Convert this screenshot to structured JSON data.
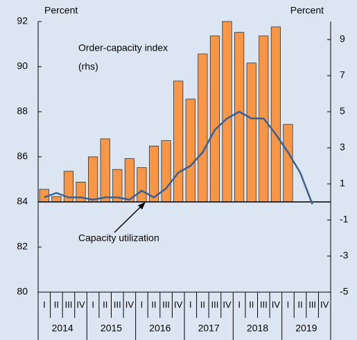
{
  "chart_data": {
    "type": "bar_line",
    "ylabel": "Percent",
    "y2label": "Percent",
    "categories": [
      "I",
      "II",
      "III",
      "IV",
      "I",
      "II",
      "III",
      "IV",
      "I",
      "II",
      "III",
      "IV",
      "I",
      "II",
      "III",
      "IV",
      "I",
      "II",
      "III",
      "IV",
      "I",
      "II",
      "III",
      "IV"
    ],
    "category_groups": [
      "2014",
      "2015",
      "2016",
      "2017",
      "2018",
      "2019"
    ],
    "series": [
      {
        "type": "bar",
        "axis": "y2",
        "color": "#f79646",
        "values": [
          0.7,
          0.3,
          1.7,
          1.1,
          2.5,
          3.5,
          1.8,
          2.4,
          1.9,
          3.1,
          3.4,
          6.7,
          5.7,
          8.2,
          9.2,
          10.0,
          9.4,
          7.7,
          9.2,
          9.7,
          4.3,
          null,
          null,
          null
        ]
      },
      {
        "type": "line",
        "axis": "y",
        "color": "#3a5f95",
        "values": [
          84.2,
          84.4,
          84.2,
          84.2,
          84.1,
          84.2,
          84.2,
          84.1,
          84.5,
          84.2,
          84.6,
          85.3,
          85.6,
          86.2,
          87.2,
          87.7,
          88.0,
          87.7,
          87.7,
          87.0,
          86.2,
          85.3,
          83.9,
          null
        ]
      }
    ],
    "annotations": [
      "Order-capacity index",
      "(rhs)",
      "Capacity utilization"
    ],
    "ylim": [
      80,
      92
    ],
    "yticks": [
      80,
      82,
      84,
      86,
      88,
      90,
      92
    ],
    "y2lim": [
      -5,
      10
    ],
    "y2ticks": [
      -5,
      -3,
      -1,
      1,
      3,
      5,
      7,
      9
    ],
    "grid": false
  }
}
